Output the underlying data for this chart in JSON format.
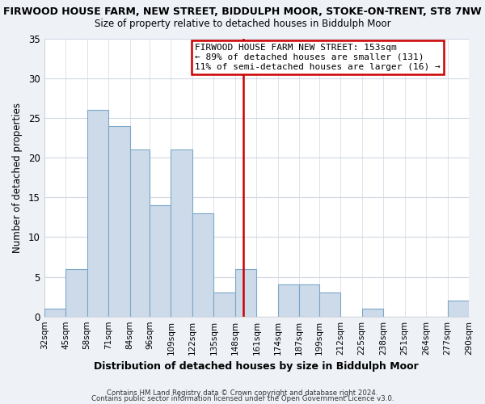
{
  "title_line1": "FIRWOOD HOUSE FARM, NEW STREET, BIDDULPH MOOR, STOKE-ON-TRENT, ST8 7NW",
  "title_line2": "Size of property relative to detached houses in Biddulph Moor",
  "xlabel": "Distribution of detached houses by size in Biddulph Moor",
  "ylabel": "Number of detached properties",
  "bin_labels": [
    "32sqm",
    "45sqm",
    "58sqm",
    "71sqm",
    "84sqm",
    "96sqm",
    "109sqm",
    "122sqm",
    "135sqm",
    "148sqm",
    "161sqm",
    "174sqm",
    "187sqm",
    "199sqm",
    "212sqm",
    "225sqm",
    "238sqm",
    "251sqm",
    "264sqm",
    "277sqm",
    "290sqm"
  ],
  "bar_values": [
    1,
    6,
    26,
    24,
    21,
    14,
    21,
    13,
    3,
    6,
    0,
    4,
    4,
    3,
    0,
    1,
    0,
    0,
    0,
    2,
    0
  ],
  "bar_color": "#cddaea",
  "bar_edge_color": "#7ba7c8",
  "vline_x": 153,
  "vline_color": "#cc0000",
  "ylim": [
    0,
    35
  ],
  "yticks": [
    0,
    5,
    10,
    15,
    20,
    25,
    30,
    35
  ],
  "annotation_title": "FIRWOOD HOUSE FARM NEW STREET: 153sqm",
  "annotation_line2": "← 89% of detached houses are smaller (131)",
  "annotation_line3": "11% of semi-detached houses are larger (16) →",
  "footer_line1": "Contains HM Land Registry data © Crown copyright and database right 2024.",
  "footer_line2": "Contains public sector information licensed under the Open Government Licence v3.0.",
  "background_color": "#eef2f7",
  "plot_bg_color": "#ffffff",
  "grid_color": "#d0d8e4"
}
